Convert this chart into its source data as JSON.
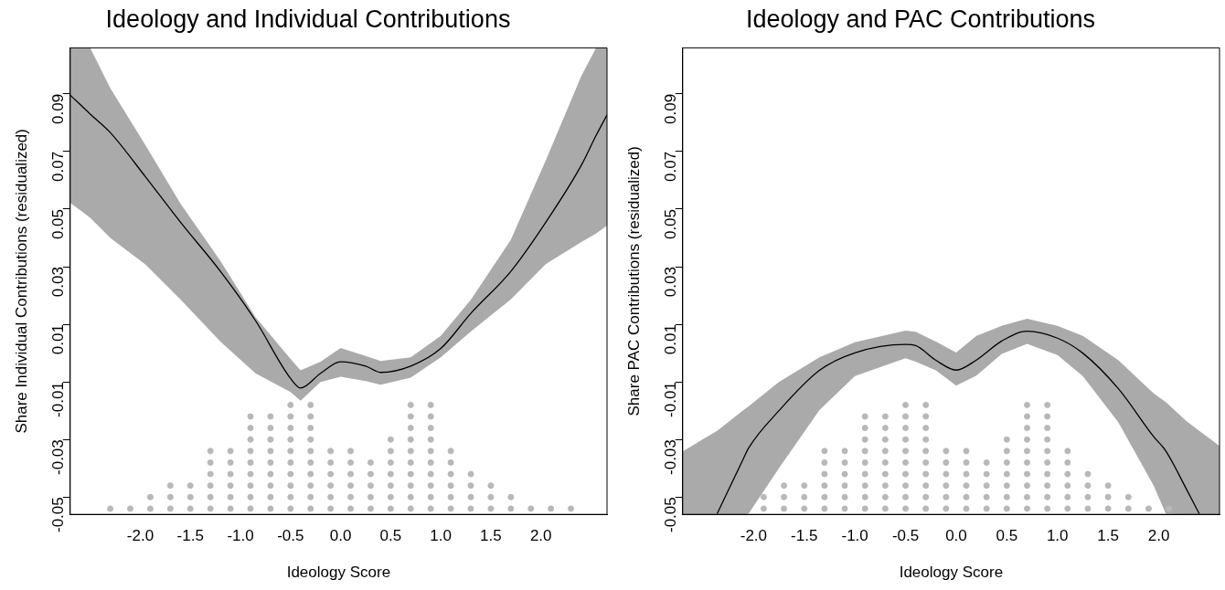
{
  "chart_data": [
    {
      "type": "line",
      "title": "Ideology and Individual Contributions",
      "xlabel": "Ideology Score",
      "ylabel": "Share Individual Contributions (residualized)",
      "xlim": [
        -2.7,
        2.66
      ],
      "ylim": [
        -0.056,
        0.106
      ],
      "grid": false,
      "legend": false,
      "xticks": [
        {
          "value": -2,
          "label": "-2.0"
        },
        {
          "value": -1.5,
          "label": "-1.5"
        },
        {
          "value": -1,
          "label": "-1.0"
        },
        {
          "value": -0.5,
          "label": "-0.5"
        },
        {
          "value": 0,
          "label": "0.0"
        },
        {
          "value": 0.5,
          "label": "0.5"
        },
        {
          "value": 1,
          "label": "1.0"
        },
        {
          "value": 1.5,
          "label": "1.5"
        },
        {
          "value": 2,
          "label": "2.0"
        }
      ],
      "yticks": [
        0.09,
        0.07,
        0.05,
        0.03,
        0.01,
        -0.01,
        -0.03,
        -0.05
      ],
      "series": [
        {
          "type": "scatter",
          "color": "#b8b8b8",
          "x": [
            -2.3,
            -2.1,
            -1.9,
            -1.9,
            -1.7,
            -1.7,
            -1.7,
            -1.5,
            -1.5,
            -1.5,
            -1.3,
            -1.3,
            -1.3,
            -1.3,
            -1.3,
            -1.3,
            -1.1,
            -1.1,
            -1.1,
            -1.1,
            -1.1,
            -1.1,
            -0.9,
            -0.9,
            -0.9,
            -0.9,
            -0.9,
            -0.9,
            -0.9,
            -0.9,
            -0.9,
            -0.7,
            -0.7,
            -0.7,
            -0.7,
            -0.7,
            -0.7,
            -0.7,
            -0.7,
            -0.7,
            -0.5,
            -0.5,
            -0.5,
            -0.5,
            -0.5,
            -0.5,
            -0.5,
            -0.5,
            -0.5,
            -0.5,
            -0.3,
            -0.3,
            -0.3,
            -0.3,
            -0.3,
            -0.3,
            -0.3,
            -0.3,
            -0.3,
            -0.3,
            -0.1,
            -0.1,
            -0.1,
            -0.1,
            -0.1,
            -0.1,
            0.1,
            0.1,
            0.1,
            0.1,
            0.1,
            0.1,
            0.3,
            0.3,
            0.3,
            0.3,
            0.3,
            0.5,
            0.5,
            0.5,
            0.5,
            0.5,
            0.5,
            0.5,
            0.7,
            0.7,
            0.7,
            0.7,
            0.7,
            0.7,
            0.7,
            0.7,
            0.7,
            0.7,
            0.9,
            0.9,
            0.9,
            0.9,
            0.9,
            0.9,
            0.9,
            0.9,
            0.9,
            0.9,
            1.1,
            1.1,
            1.1,
            1.1,
            1.1,
            1.1,
            1.3,
            1.3,
            1.3,
            1.3,
            1.5,
            1.5,
            1.5,
            1.7,
            1.7,
            1.9,
            2.1,
            2.3
          ],
          "values": [
            -0.054,
            -0.054,
            -0.054,
            -0.05,
            -0.054,
            -0.05,
            -0.046,
            -0.054,
            -0.05,
            -0.046,
            -0.054,
            -0.05,
            -0.046,
            -0.042,
            -0.038,
            -0.034,
            -0.054,
            -0.05,
            -0.046,
            -0.042,
            -0.038,
            -0.034,
            -0.054,
            -0.05,
            -0.046,
            -0.042,
            -0.038,
            -0.034,
            -0.03,
            -0.026,
            -0.022,
            -0.054,
            -0.05,
            -0.046,
            -0.042,
            -0.038,
            -0.034,
            -0.03,
            -0.026,
            -0.022,
            -0.054,
            -0.05,
            -0.046,
            -0.042,
            -0.038,
            -0.034,
            -0.03,
            -0.026,
            -0.022,
            -0.018,
            -0.054,
            -0.05,
            -0.046,
            -0.042,
            -0.038,
            -0.034,
            -0.03,
            -0.026,
            -0.022,
            -0.018,
            -0.054,
            -0.05,
            -0.046,
            -0.042,
            -0.038,
            -0.034,
            -0.054,
            -0.05,
            -0.046,
            -0.042,
            -0.038,
            -0.034,
            -0.054,
            -0.05,
            -0.046,
            -0.042,
            -0.038,
            -0.054,
            -0.05,
            -0.046,
            -0.042,
            -0.038,
            -0.034,
            -0.03,
            -0.054,
            -0.05,
            -0.046,
            -0.042,
            -0.038,
            -0.034,
            -0.03,
            -0.026,
            -0.022,
            -0.018,
            -0.054,
            -0.05,
            -0.046,
            -0.042,
            -0.038,
            -0.034,
            -0.03,
            -0.026,
            -0.022,
            -0.018,
            -0.054,
            -0.05,
            -0.046,
            -0.042,
            -0.038,
            -0.034,
            -0.054,
            -0.05,
            -0.046,
            -0.042,
            -0.054,
            -0.05,
            -0.046,
            -0.054,
            -0.05,
            -0.054,
            -0.054,
            -0.054
          ]
        },
        {
          "color": "#000000",
          "x": [
            -2.7,
            -2.5,
            -2.3,
            -1.95,
            -1.6,
            -1.2,
            -0.85,
            -0.5,
            -0.4,
            -0.2,
            0,
            0.25,
            0.4,
            0.7,
            1.0,
            1.3,
            1.7,
            2.05,
            2.4,
            2.55,
            2.66
          ],
          "values": [
            0.0896,
            0.083,
            0.0766,
            0.0613,
            0.0455,
            0.0284,
            0.0113,
            -0.0088,
            -0.0121,
            -0.007,
            -0.003,
            -0.0045,
            -0.0067,
            -0.0045,
            0.0016,
            0.0138,
            0.0284,
            0.0455,
            0.065,
            0.0755,
            0.0827
          ],
          "upper": [
            0.106,
            0.106,
            0.092,
            0.0723,
            0.052,
            0.032,
            0.0125,
            -0.002,
            -0.006,
            -0.003,
            0.0018,
            -0.001,
            -0.0027,
            -0.0015,
            0.006,
            0.0185,
            0.0394,
            0.067,
            0.096,
            0.106,
            0.106
          ],
          "lower": [
            0.0522,
            0.047,
            0.04,
            0.0308,
            0.0187,
            0.004,
            -0.007,
            -0.0135,
            -0.0165,
            -0.01,
            -0.0082,
            -0.0097,
            -0.011,
            -0.0085,
            -0.0015,
            0.0075,
            0.0187,
            0.031,
            0.0385,
            0.0415,
            0.0443
          ]
        }
      ]
    },
    {
      "type": "line",
      "title": "Ideology and PAC Contributions",
      "xlabel": "Ideology Score",
      "ylabel": "Share PAC Contributions (residualized)",
      "xlim": [
        -2.7,
        2.6
      ],
      "ylim": [
        -0.056,
        0.106
      ],
      "grid": false,
      "legend": false,
      "xticks": [
        {
          "value": -2,
          "label": "-2.0"
        },
        {
          "value": -1.5,
          "label": "-1.5"
        },
        {
          "value": -1,
          "label": "-1.0"
        },
        {
          "value": -0.5,
          "label": "-0.5"
        },
        {
          "value": 0,
          "label": "0.0"
        },
        {
          "value": 0.5,
          "label": "0.5"
        },
        {
          "value": 1,
          "label": "1.0"
        },
        {
          "value": 1.5,
          "label": "1.5"
        },
        {
          "value": 2,
          "label": "2.0"
        }
      ],
      "yticks": [
        0.09,
        0.07,
        0.05,
        0.03,
        0.01,
        -0.01,
        -0.03,
        -0.05
      ],
      "series": [
        {
          "type": "scatter",
          "color": "#b8b8b8",
          "x": [
            -1.9,
            -1.9,
            -1.7,
            -1.7,
            -1.7,
            -1.5,
            -1.5,
            -1.5,
            -1.3,
            -1.3,
            -1.3,
            -1.3,
            -1.3,
            -1.3,
            -1.1,
            -1.1,
            -1.1,
            -1.1,
            -1.1,
            -1.1,
            -0.9,
            -0.9,
            -0.9,
            -0.9,
            -0.9,
            -0.9,
            -0.9,
            -0.9,
            -0.9,
            -0.7,
            -0.7,
            -0.7,
            -0.7,
            -0.7,
            -0.7,
            -0.7,
            -0.7,
            -0.7,
            -0.5,
            -0.5,
            -0.5,
            -0.5,
            -0.5,
            -0.5,
            -0.5,
            -0.5,
            -0.5,
            -0.5,
            -0.3,
            -0.3,
            -0.3,
            -0.3,
            -0.3,
            -0.3,
            -0.3,
            -0.3,
            -0.3,
            -0.3,
            -0.1,
            -0.1,
            -0.1,
            -0.1,
            -0.1,
            -0.1,
            0.1,
            0.1,
            0.1,
            0.1,
            0.1,
            0.1,
            0.3,
            0.3,
            0.3,
            0.3,
            0.3,
            0.5,
            0.5,
            0.5,
            0.5,
            0.5,
            0.5,
            0.5,
            0.7,
            0.7,
            0.7,
            0.7,
            0.7,
            0.7,
            0.7,
            0.7,
            0.7,
            0.7,
            0.9,
            0.9,
            0.9,
            0.9,
            0.9,
            0.9,
            0.9,
            0.9,
            0.9,
            0.9,
            1.1,
            1.1,
            1.1,
            1.1,
            1.1,
            1.1,
            1.3,
            1.3,
            1.3,
            1.3,
            1.5,
            1.5,
            1.5,
            1.7,
            1.7,
            1.9,
            2.1
          ],
          "values": [
            -0.054,
            -0.05,
            -0.054,
            -0.05,
            -0.046,
            -0.054,
            -0.05,
            -0.046,
            -0.054,
            -0.05,
            -0.046,
            -0.042,
            -0.038,
            -0.034,
            -0.054,
            -0.05,
            -0.046,
            -0.042,
            -0.038,
            -0.034,
            -0.054,
            -0.05,
            -0.046,
            -0.042,
            -0.038,
            -0.034,
            -0.03,
            -0.026,
            -0.022,
            -0.054,
            -0.05,
            -0.046,
            -0.042,
            -0.038,
            -0.034,
            -0.03,
            -0.026,
            -0.022,
            -0.054,
            -0.05,
            -0.046,
            -0.042,
            -0.038,
            -0.034,
            -0.03,
            -0.026,
            -0.022,
            -0.018,
            -0.054,
            -0.05,
            -0.046,
            -0.042,
            -0.038,
            -0.034,
            -0.03,
            -0.026,
            -0.022,
            -0.018,
            -0.054,
            -0.05,
            -0.046,
            -0.042,
            -0.038,
            -0.034,
            -0.054,
            -0.05,
            -0.046,
            -0.042,
            -0.038,
            -0.034,
            -0.054,
            -0.05,
            -0.046,
            -0.042,
            -0.038,
            -0.054,
            -0.05,
            -0.046,
            -0.042,
            -0.038,
            -0.034,
            -0.03,
            -0.054,
            -0.05,
            -0.046,
            -0.042,
            -0.038,
            -0.034,
            -0.03,
            -0.026,
            -0.022,
            -0.018,
            -0.054,
            -0.05,
            -0.046,
            -0.042,
            -0.038,
            -0.034,
            -0.03,
            -0.026,
            -0.022,
            -0.018,
            -0.054,
            -0.05,
            -0.046,
            -0.042,
            -0.038,
            -0.034,
            -0.054,
            -0.05,
            -0.046,
            -0.042,
            -0.054,
            -0.05,
            -0.046,
            -0.054,
            -0.05,
            -0.054,
            -0.054
          ]
        },
        {
          "color": "#000000",
          "x": [
            -2.7,
            -2.36,
            -2.1,
            -2.05,
            -1.75,
            -1.35,
            -1.0,
            -0.5,
            -0.4,
            -0.2,
            0,
            0.2,
            0.45,
            0.7,
            1.0,
            1.25,
            1.6,
            1.95,
            2.07,
            2.27,
            2.4,
            2.6
          ],
          "values": [
            null,
            -0.0558,
            -0.0366,
            -0.033,
            -0.02,
            -0.006,
            0.0001,
            0.003,
            0.0026,
            -0.0025,
            -0.0059,
            -0.0024,
            0.0042,
            0.0076,
            0.0052,
            0.0,
            -0.0123,
            -0.029,
            -0.034,
            -0.047,
            -0.0558,
            null
          ],
          "upper": [
            -0.0341,
            -0.027,
            -0.0198,
            -0.0185,
            -0.01,
            -0.0015,
            0.0038,
            0.0078,
            0.0074,
            0.004,
            0.0002,
            0.006,
            0.0095,
            0.0119,
            0.0095,
            0.006,
            -0.0024,
            -0.014,
            -0.017,
            -0.0235,
            -0.027,
            -0.0322
          ],
          "lower": [
            -0.056,
            -0.056,
            -0.056,
            -0.0558,
            -0.04,
            -0.0198,
            -0.008,
            -0.0018,
            -0.003,
            -0.006,
            -0.0113,
            -0.0078,
            -0.0003,
            0.0032,
            -0.0007,
            -0.008,
            -0.024,
            -0.046,
            -0.0558,
            -0.056,
            -0.056,
            -0.056
          ]
        }
      ]
    }
  ]
}
